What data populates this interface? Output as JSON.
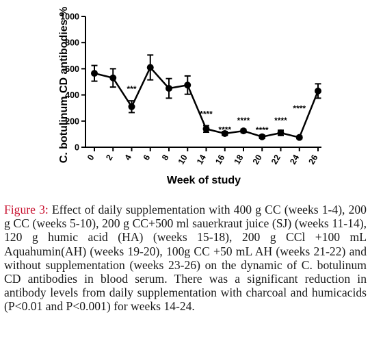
{
  "chart_data": {
    "type": "line",
    "title": "",
    "xlabel": "Week of study",
    "ylabel": "C. botulinum CD antibodies %",
    "ylim": [
      0,
      1000
    ],
    "yticks": [
      0,
      200,
      400,
      600,
      800,
      1000
    ],
    "categories": [
      "0",
      "2",
      "4",
      "6",
      "8",
      "10",
      "14",
      "16",
      "18",
      "20",
      "22",
      "24",
      "26"
    ],
    "series": [
      {
        "values": [
          565,
          530,
          310,
          610,
          450,
          475,
          140,
          105,
          125,
          80,
          110,
          75,
          430
        ],
        "errors": [
          60,
          70,
          45,
          95,
          75,
          70,
          25,
          15,
          12,
          12,
          20,
          10,
          55
        ]
      }
    ],
    "annotations": [
      {
        "category": "4",
        "y": 450,
        "text": "***"
      },
      {
        "category": "14",
        "y": 260,
        "text": "****"
      },
      {
        "category": "16",
        "y": 140,
        "text": "****"
      },
      {
        "category": "18",
        "y": 210,
        "text": "****"
      },
      {
        "category": "20",
        "y": 135,
        "text": "****"
      },
      {
        "category": "22",
        "y": 210,
        "text": "****"
      },
      {
        "category": "24",
        "y": 300,
        "text": "****"
      }
    ],
    "grid": false,
    "legend": "none"
  },
  "caption": {
    "label": "Figure 3:",
    "text": " Effect of daily supplementation with 400 g CC (weeks 1-4), 200 g CC (weeks 5-10), 200 g CC+500 ml sauerkraut juice (SJ) (weeks 11-14), 120 g humic acid (HA) (weeks 15-18), 200 g CCl +100 mL Aquahumin(AH) (weeks 19-20), 100g CC +50 mL AH (weeks 21-22) and without supplementation (weeks 23-26) on the dynamic of C. botulinum CD antibodies in blood serum. There was a significant reduction in antibody levels from daily supplementation with charcoal and humicacids (P<0.01 and P<0.001) for weeks 14-24."
  }
}
